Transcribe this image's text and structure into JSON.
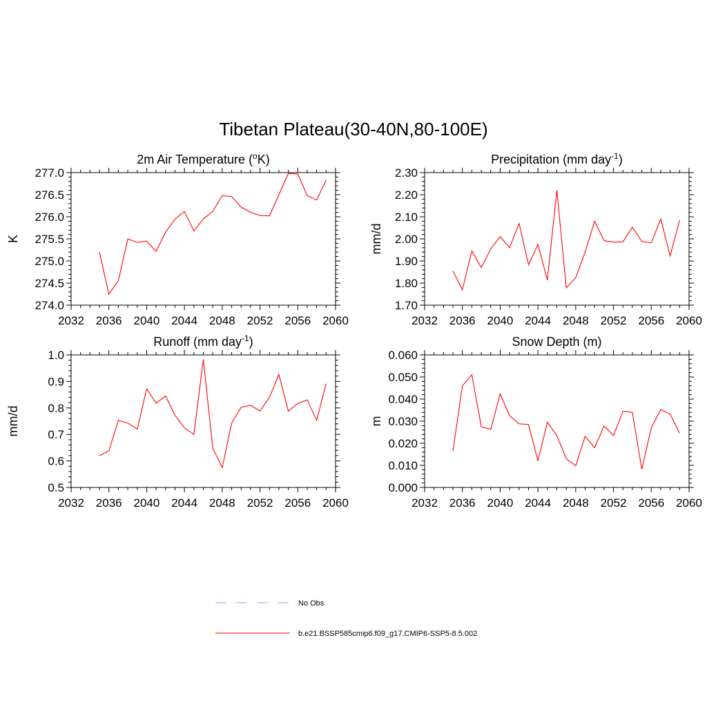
{
  "page_title": "Tibetan Plateau(30-40N,80-100E)",
  "chart_data": [
    {
      "type": "line",
      "title": "2m Air Temperature (",
      "title_sup": "o",
      "title_tail": "K)",
      "ylabel": "K",
      "xlim": [
        2032,
        2060
      ],
      "ylim": [
        274.0,
        277.0
      ],
      "xticks": [
        "2032",
        "2036",
        "2040",
        "2044",
        "2048",
        "2052",
        "2056",
        "2060"
      ],
      "yticks": [
        "274.0",
        "274.5",
        "275.0",
        "275.5",
        "276.0",
        "276.5",
        "277.0"
      ],
      "series": [
        {
          "name": "b.e21.BSSP585cmip6.f09_g17.CMIP6-SSP5-8.5.002",
          "color": "#ff0000",
          "x": [
            2035,
            2036,
            2037,
            2038,
            2039,
            2040,
            2041,
            2042,
            2043,
            2044,
            2045,
            2046,
            2047,
            2048,
            2049,
            2050,
            2051,
            2052,
            2053,
            2054,
            2055,
            2056,
            2057,
            2058,
            2059
          ],
          "y": [
            275.2,
            274.25,
            274.55,
            275.5,
            275.42,
            275.45,
            275.22,
            275.65,
            275.95,
            276.12,
            275.68,
            275.95,
            276.12,
            276.48,
            276.46,
            276.22,
            276.1,
            276.03,
            276.02,
            276.5,
            276.98,
            276.97,
            276.48,
            276.38,
            276.83
          ]
        }
      ]
    },
    {
      "type": "line",
      "title": "Precipitation (mm day",
      "title_sup": "-1",
      "title_tail": ")",
      "ylabel": "mm/d",
      "xlim": [
        2032,
        2060
      ],
      "ylim": [
        1.7,
        2.3
      ],
      "xticks": [
        "2032",
        "2036",
        "2040",
        "2044",
        "2048",
        "2052",
        "2056",
        "2060"
      ],
      "yticks": [
        "1.70",
        "1.80",
        "1.90",
        "2.00",
        "2.10",
        "2.20",
        "2.30"
      ],
      "series": [
        {
          "name": "b.e21.BSSP585cmip6.f09_g17.CMIP6-SSP5-8.5.002",
          "color": "#ff0000",
          "x": [
            2035,
            2036,
            2037,
            2038,
            2039,
            2040,
            2041,
            2042,
            2043,
            2044,
            2045,
            2046,
            2047,
            2048,
            2049,
            2050,
            2051,
            2052,
            2053,
            2054,
            2055,
            2056,
            2057,
            2058,
            2059
          ],
          "y": [
            1.855,
            1.77,
            1.945,
            1.87,
            1.955,
            2.01,
            1.96,
            2.07,
            1.883,
            1.975,
            1.813,
            2.22,
            1.778,
            1.825,
            1.94,
            2.08,
            1.992,
            1.985,
            1.987,
            2.053,
            1.988,
            1.982,
            2.09,
            1.923,
            2.085
          ]
        }
      ]
    },
    {
      "type": "line",
      "title": "Runoff (mm day",
      "title_sup": "-1",
      "title_tail": ")",
      "ylabel": "mm/d",
      "xlim": [
        2032,
        2060
      ],
      "ylim": [
        0.5,
        1.0
      ],
      "xticks": [
        "2032",
        "2036",
        "2040",
        "2044",
        "2048",
        "2052",
        "2056",
        "2060"
      ],
      "yticks": [
        "0.5",
        "0.6",
        "0.7",
        "0.8",
        "0.9",
        "1.0"
      ],
      "series": [
        {
          "name": "b.e21.BSSP585cmip6.f09_g17.CMIP6-SSP5-8.5.002",
          "color": "#ff0000",
          "x": [
            2035,
            2036,
            2037,
            2038,
            2039,
            2040,
            2041,
            2042,
            2043,
            2044,
            2045,
            2046,
            2047,
            2048,
            2049,
            2050,
            2051,
            2052,
            2053,
            2054,
            2055,
            2056,
            2057,
            2058,
            2059
          ],
          "y": [
            0.62,
            0.638,
            0.753,
            0.743,
            0.72,
            0.872,
            0.818,
            0.845,
            0.772,
            0.725,
            0.7,
            0.983,
            0.648,
            0.575,
            0.743,
            0.802,
            0.81,
            0.788,
            0.84,
            0.926,
            0.788,
            0.817,
            0.83,
            0.753,
            0.892
          ]
        }
      ]
    },
    {
      "type": "line",
      "title": "Snow Depth (m)",
      "title_sup": "",
      "title_tail": "",
      "ylabel": "m",
      "xlim": [
        2032,
        2060
      ],
      "ylim": [
        0.0,
        0.06
      ],
      "xticks": [
        "2032",
        "2036",
        "2040",
        "2044",
        "2048",
        "2052",
        "2056",
        "2060"
      ],
      "yticks": [
        "0.000",
        "0.010",
        "0.020",
        "0.030",
        "0.040",
        "0.050",
        "0.060"
      ],
      "series": [
        {
          "name": "b.e21.BSSP585cmip6.f09_g17.CMIP6-SSP5-8.5.002",
          "color": "#ff0000",
          "x": [
            2035,
            2036,
            2037,
            2038,
            2039,
            2040,
            2041,
            2042,
            2043,
            2044,
            2045,
            2046,
            2047,
            2048,
            2049,
            2050,
            2051,
            2052,
            2053,
            2054,
            2055,
            2056,
            2057,
            2058,
            2059
          ],
          "y": [
            0.0165,
            0.046,
            0.051,
            0.0275,
            0.0263,
            0.0423,
            0.0325,
            0.0288,
            0.0285,
            0.012,
            0.0295,
            0.0235,
            0.013,
            0.0098,
            0.0232,
            0.018,
            0.0278,
            0.0235,
            0.0345,
            0.034,
            0.0082,
            0.027,
            0.0352,
            0.0332,
            0.0245
          ]
        }
      ]
    }
  ],
  "legend": {
    "items": [
      {
        "label": "No Obs",
        "color": "#9999ff",
        "style": "dashed"
      },
      {
        "label": "b.e21.BSSP585cmip6.f09_g17.CMIP6-SSP5-8.5.002",
        "color": "#ff0000",
        "style": "solid"
      }
    ]
  }
}
